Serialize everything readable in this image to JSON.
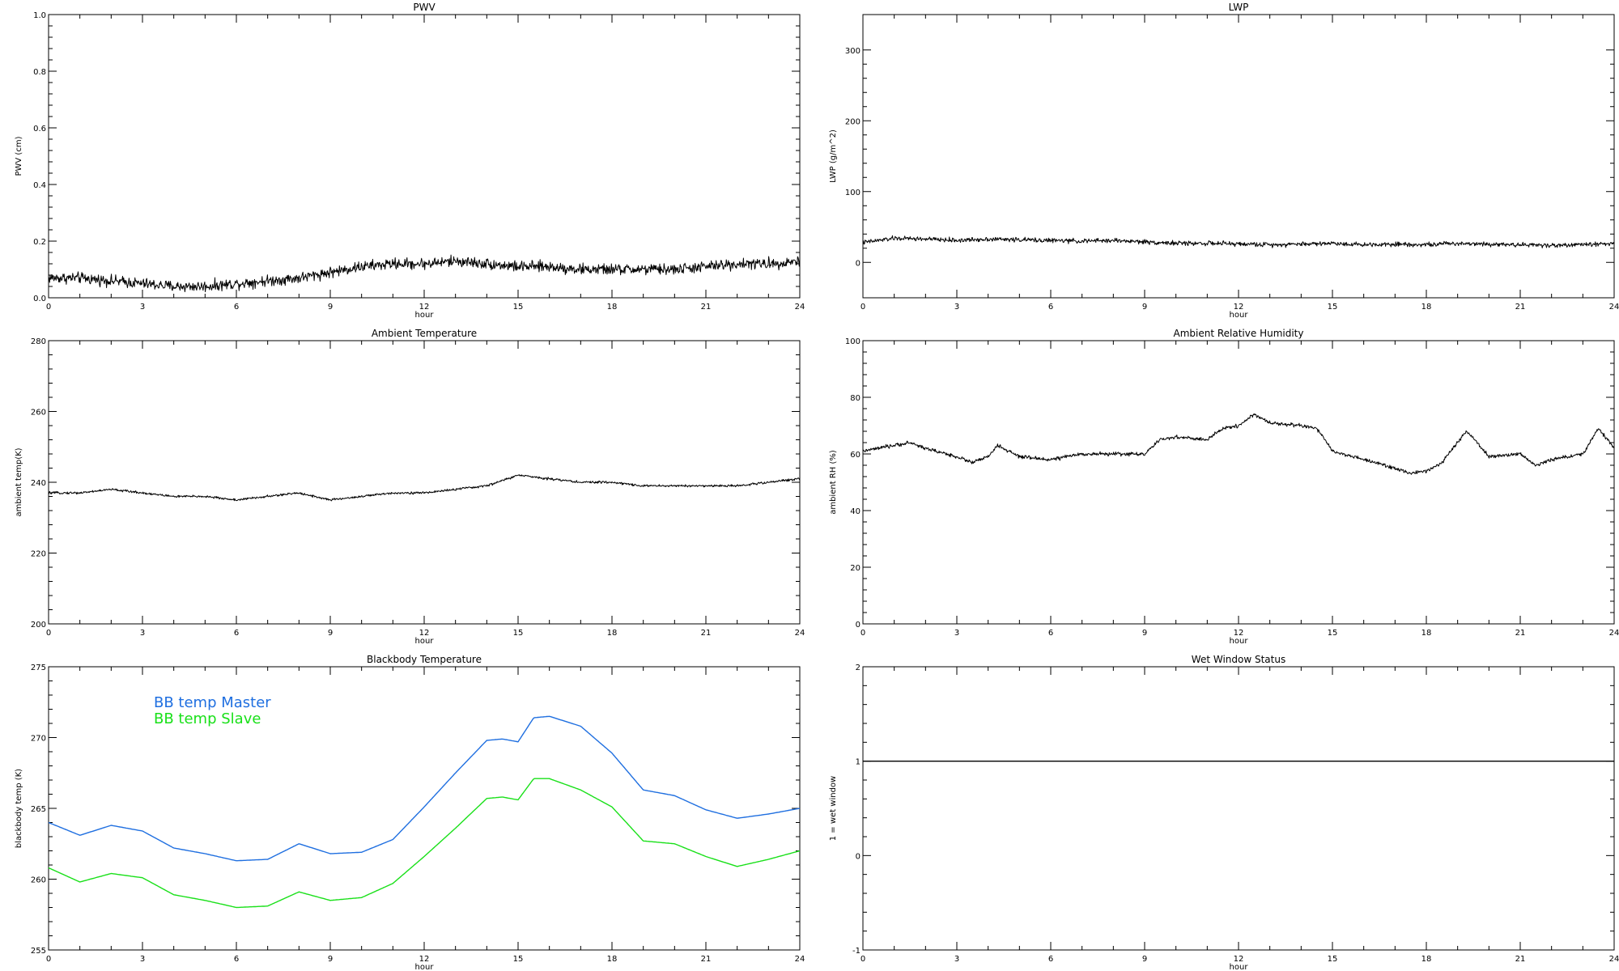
{
  "chart_data": [
    {
      "type": "line",
      "title": "PWV",
      "xlabel": "hour",
      "ylabel": "PWV (cm)",
      "xlim": [
        0,
        24
      ],
      "ylim": [
        0,
        1
      ],
      "x_ticks": [
        0,
        3,
        6,
        9,
        12,
        15,
        18,
        21,
        24
      ],
      "y_ticks": [
        0.0,
        0.2,
        0.4,
        0.6,
        0.8,
        1.0
      ],
      "y_tick_labels": [
        "0.0",
        "0.2",
        "0.4",
        "0.6",
        "0.8",
        "1.0"
      ],
      "noise": 0.012,
      "series": [
        {
          "color": "#000000",
          "x": [
            0,
            1,
            2,
            3,
            4,
            5,
            6,
            7,
            8,
            9,
            10,
            11,
            12,
            13,
            14,
            15,
            16,
            17,
            18,
            19,
            20,
            21,
            22,
            23,
            24
          ],
          "y": [
            0.07,
            0.07,
            0.06,
            0.05,
            0.04,
            0.04,
            0.05,
            0.06,
            0.07,
            0.09,
            0.11,
            0.12,
            0.12,
            0.13,
            0.12,
            0.11,
            0.11,
            0.1,
            0.1,
            0.1,
            0.1,
            0.11,
            0.12,
            0.12,
            0.13
          ]
        }
      ]
    },
    {
      "type": "line",
      "title": "LWP",
      "xlabel": "hour",
      "ylabel": "LWP (g/m^2)",
      "xlim": [
        0,
        24
      ],
      "ylim": [
        -50,
        350
      ],
      "x_ticks": [
        0,
        3,
        6,
        9,
        12,
        15,
        18,
        21,
        24
      ],
      "y_ticks": [
        0,
        100,
        200,
        300
      ],
      "y_tick_labels": [
        "0",
        "100",
        "200",
        "300"
      ],
      "noise": 2.0,
      "series": [
        {
          "color": "#000000",
          "x": [
            0,
            1,
            2,
            3,
            4,
            5,
            6,
            7,
            8,
            9,
            10,
            11,
            12,
            13,
            14,
            15,
            16,
            17,
            18,
            19,
            20,
            21,
            22,
            23,
            24
          ],
          "y": [
            28,
            34,
            33,
            31,
            33,
            32,
            31,
            30,
            31,
            29,
            27,
            27,
            26,
            25,
            26,
            27,
            25,
            26,
            25,
            27,
            26,
            25,
            24,
            25,
            27
          ]
        }
      ]
    },
    {
      "type": "line",
      "title": "Ambient Temperature",
      "xlabel": "hour",
      "ylabel": "ambient temp(K)",
      "xlim": [
        0,
        24
      ],
      "ylim": [
        200,
        280
      ],
      "x_ticks": [
        0,
        3,
        6,
        9,
        12,
        15,
        18,
        21,
        24
      ],
      "y_ticks": [
        200,
        220,
        240,
        260,
        280
      ],
      "y_tick_labels": [
        "200",
        "220",
        "240",
        "260",
        "280"
      ],
      "noise": 0.2,
      "series": [
        {
          "color": "#000000",
          "x": [
            0,
            1,
            2,
            3,
            4,
            5,
            6,
            7,
            8,
            9,
            10,
            11,
            12,
            13,
            14,
            15,
            16,
            17,
            18,
            19,
            20,
            21,
            22,
            23,
            24
          ],
          "y": [
            237,
            237,
            238,
            237,
            236,
            236,
            235,
            236,
            237,
            235,
            236,
            237,
            237,
            238,
            239,
            242,
            241,
            240,
            240,
            239,
            239,
            239,
            239,
            240,
            241
          ]
        }
      ]
    },
    {
      "type": "line",
      "title": "Ambient Relative Humidity",
      "xlabel": "hour",
      "ylabel": "ambient RH (%)",
      "xlim": [
        0,
        24
      ],
      "ylim": [
        0,
        100
      ],
      "x_ticks": [
        0,
        3,
        6,
        9,
        12,
        15,
        18,
        21,
        24
      ],
      "y_ticks": [
        0,
        20,
        40,
        60,
        80,
        100
      ],
      "y_tick_labels": [
        "0",
        "20",
        "40",
        "60",
        "80",
        "100"
      ],
      "noise": 0.4,
      "series": [
        {
          "color": "#000000",
          "x": [
            0,
            1,
            1.5,
            2,
            3,
            3.5,
            4,
            4.3,
            5,
            6,
            7,
            8,
            9,
            9.5,
            10,
            11,
            11.5,
            12,
            12.5,
            13,
            14,
            14.5,
            15,
            16,
            17,
            17.5,
            18,
            18.5,
            19,
            19.3,
            19.7,
            20,
            21,
            21.5,
            22,
            23,
            23.5,
            24
          ],
          "y": [
            61,
            63,
            64,
            62,
            59,
            57,
            59,
            63,
            59,
            58,
            60,
            60,
            60,
            65,
            66,
            65,
            69,
            70,
            74,
            71,
            70,
            69,
            61,
            58,
            55,
            53,
            54,
            57,
            64,
            68,
            63,
            59,
            60,
            56,
            58,
            60,
            69,
            62
          ]
        }
      ]
    },
    {
      "type": "line",
      "title": "Blackbody Temperature",
      "xlabel": "hour",
      "ylabel": "blackbody temp (K)",
      "xlim": [
        0,
        24
      ],
      "ylim": [
        255,
        275
      ],
      "x_ticks": [
        0,
        3,
        6,
        9,
        12,
        15,
        18,
        21,
        24
      ],
      "y_ticks": [
        255,
        260,
        265,
        270,
        275
      ],
      "y_tick_labels": [
        "255",
        "260",
        "265",
        "270",
        "275"
      ],
      "noise": 0,
      "legend": [
        {
          "label": "BB temp Master",
          "color": "#1f6fe0"
        },
        {
          "label": "BB temp Slave",
          "color": "#19e019"
        }
      ],
      "series": [
        {
          "name": "BB temp Master",
          "color": "#1f6fe0",
          "x": [
            0,
            1,
            2,
            3,
            4,
            5,
            6,
            7,
            8,
            9,
            10,
            11,
            12,
            13,
            14,
            14.5,
            15,
            15.5,
            16,
            17,
            18,
            19,
            20,
            21,
            22,
            23,
            24
          ],
          "y": [
            264,
            263.1,
            263.8,
            263.4,
            262.2,
            261.8,
            261.3,
            261.4,
            262.5,
            261.8,
            261.9,
            262.8,
            265.1,
            267.5,
            269.8,
            269.9,
            269.7,
            271.4,
            271.5,
            270.8,
            268.9,
            266.3,
            265.9,
            264.9,
            264.3,
            264.6,
            265
          ]
        },
        {
          "name": "BB temp Slave",
          "color": "#19e019",
          "x": [
            0,
            1,
            2,
            3,
            4,
            5,
            6,
            7,
            8,
            9,
            10,
            11,
            12,
            13,
            14,
            14.5,
            15,
            15.5,
            16,
            17,
            18,
            19,
            20,
            21,
            22,
            23,
            24
          ],
          "y": [
            260.8,
            259.8,
            260.4,
            260.1,
            258.9,
            258.5,
            258,
            258.1,
            259.1,
            258.5,
            258.7,
            259.7,
            261.6,
            263.6,
            265.7,
            265.8,
            265.6,
            267.1,
            267.1,
            266.3,
            265.1,
            262.7,
            262.5,
            261.6,
            260.9,
            261.4,
            262
          ]
        }
      ]
    },
    {
      "type": "line",
      "title": "Wet Window Status",
      "xlabel": "hour",
      "ylabel": "1 = wet window",
      "xlim": [
        0,
        24
      ],
      "ylim": [
        -1,
        2
      ],
      "x_ticks": [
        0,
        3,
        6,
        9,
        12,
        15,
        18,
        21,
        24
      ],
      "y_ticks": [
        -1,
        0,
        1,
        2
      ],
      "y_tick_labels": [
        "-1",
        "0",
        "1",
        "2"
      ],
      "noise": 0,
      "series": [
        {
          "color": "#000000",
          "x": [
            0,
            24
          ],
          "y": [
            1,
            1
          ]
        }
      ]
    }
  ]
}
